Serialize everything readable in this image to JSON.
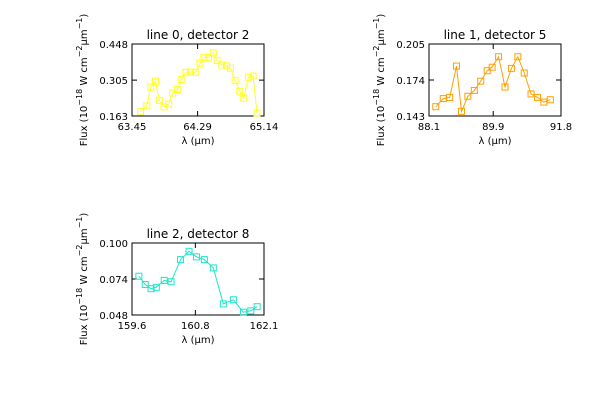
{
  "chart_data": [
    {
      "type": "line",
      "title": "line 0, detector 2",
      "xlabel": "λ (μm)",
      "ylabel": "Flux (10⁻¹⁸ W cm⁻² μm⁻¹)",
      "xlim": [
        63.45,
        65.14
      ],
      "ylim": [
        0.163,
        0.448
      ],
      "xticks": [
        "63.45",
        "64.29",
        "65.14"
      ],
      "yticks": [
        "0.163",
        "0.305",
        "0.448"
      ],
      "color": "#ffff22",
      "x": [
        63.56,
        63.64,
        63.69,
        63.75,
        63.8,
        63.86,
        63.92,
        63.97,
        64.03,
        64.08,
        64.14,
        64.2,
        64.26,
        64.32,
        64.37,
        64.43,
        64.49,
        64.54,
        64.6,
        64.66,
        64.71,
        64.77,
        64.83,
        64.88,
        64.94,
        65.0,
        65.05
      ],
      "y": [
        0.18,
        0.203,
        0.277,
        0.301,
        0.225,
        0.199,
        0.21,
        0.254,
        0.268,
        0.307,
        0.336,
        0.337,
        0.336,
        0.372,
        0.394,
        0.395,
        0.413,
        0.383,
        0.365,
        0.361,
        0.352,
        0.304,
        0.261,
        0.233,
        0.316,
        0.321,
        0.175
      ]
    },
    {
      "type": "line",
      "title": "line 1, detector 5",
      "xlabel": "λ (μm)",
      "ylabel": "Flux (10⁻¹⁸ W cm⁻² μm⁻¹)",
      "xlim": [
        88.1,
        91.8
      ],
      "ylim": [
        0.143,
        0.205
      ],
      "xticks": [
        "88.1",
        "89.9",
        "91.8"
      ],
      "yticks": [
        "0.143",
        "0.174",
        "0.205"
      ],
      "color": "#ff9f00",
      "x": [
        88.29,
        88.5,
        88.68,
        88.87,
        89.01,
        89.19,
        89.37,
        89.55,
        89.73,
        89.87,
        90.05,
        90.23,
        90.41,
        90.59,
        90.77,
        90.96,
        91.14,
        91.32,
        91.5
      ],
      "y": [
        0.151,
        0.158,
        0.159,
        0.186,
        0.147,
        0.16,
        0.165,
        0.173,
        0.182,
        0.185,
        0.194,
        0.168,
        0.184,
        0.194,
        0.18,
        0.162,
        0.159,
        0.155,
        0.157
      ]
    },
    {
      "type": "line",
      "title": "line 2, detector 8",
      "xlabel": "λ (μm)",
      "ylabel": "Flux (10⁻¹⁸ W cm⁻² μm⁻¹)",
      "xlim": [
        159.6,
        162.1
      ],
      "ylim": [
        0.048,
        0.1
      ],
      "xticks": [
        "159.6",
        "160.8",
        "162.1"
      ],
      "yticks": [
        "0.048",
        "0.074",
        "0.100"
      ],
      "color": "#1ee6c8",
      "x": [
        159.73,
        159.85,
        159.96,
        160.06,
        160.21,
        160.34,
        160.52,
        160.68,
        160.82,
        160.97,
        161.14,
        161.33,
        161.52,
        161.71,
        161.85,
        161.97
      ],
      "y": [
        0.076,
        0.07,
        0.067,
        0.068,
        0.073,
        0.072,
        0.088,
        0.094,
        0.09,
        0.088,
        0.082,
        0.056,
        0.059,
        0.05,
        0.051,
        0.054
      ]
    }
  ]
}
